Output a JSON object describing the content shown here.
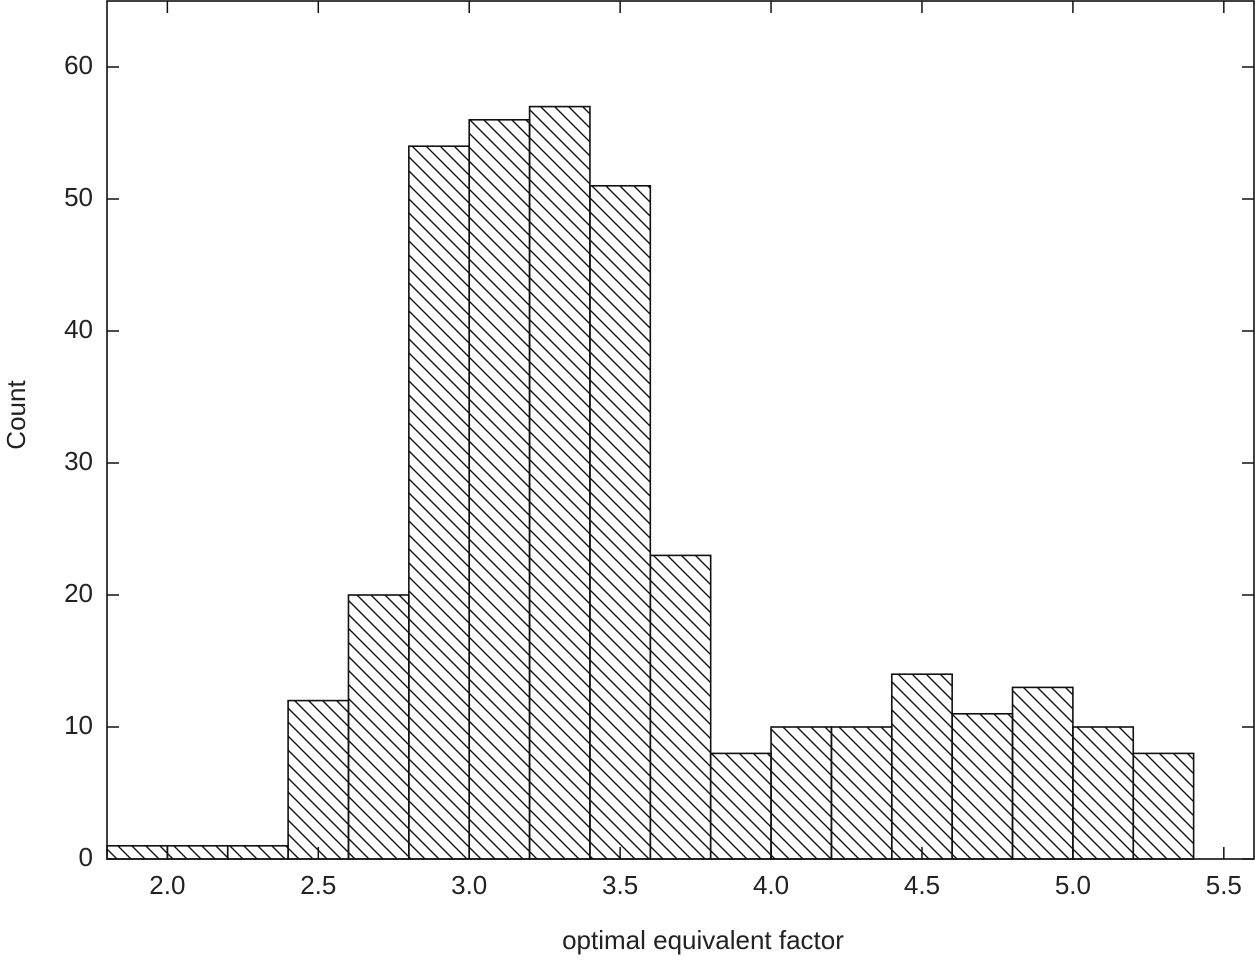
{
  "chart_data": {
    "type": "histogram",
    "x_label": "optimal equivalent factor",
    "y_label": "Count",
    "bins": [
      1.8,
      2.0,
      2.2,
      2.4,
      2.6,
      2.8,
      3.0,
      3.2,
      3.4,
      3.6,
      3.8,
      4.0,
      4.2,
      4.4,
      4.6,
      4.8,
      5.0,
      5.2,
      5.4
    ],
    "values": [
      1,
      1,
      1,
      12,
      20,
      54,
      56,
      57,
      51,
      23,
      8,
      10,
      10,
      14,
      11,
      13,
      10,
      8
    ],
    "color": "#111111",
    "hatch": true,
    "xlim": [
      1.8,
      5.6
    ],
    "ylim": [
      0,
      65
    ],
    "xticks": [
      {
        "value": 2,
        "label": "2.0"
      },
      2.5,
      {
        "value": 3,
        "label": "3.0"
      },
      3.5,
      {
        "value": 4,
        "label": "4.0"
      },
      4.5,
      {
        "value": 5,
        "label": "5.0"
      },
      5.5
    ],
    "yticks": [
      0,
      10,
      20,
      30,
      40,
      50,
      60
    ]
  }
}
